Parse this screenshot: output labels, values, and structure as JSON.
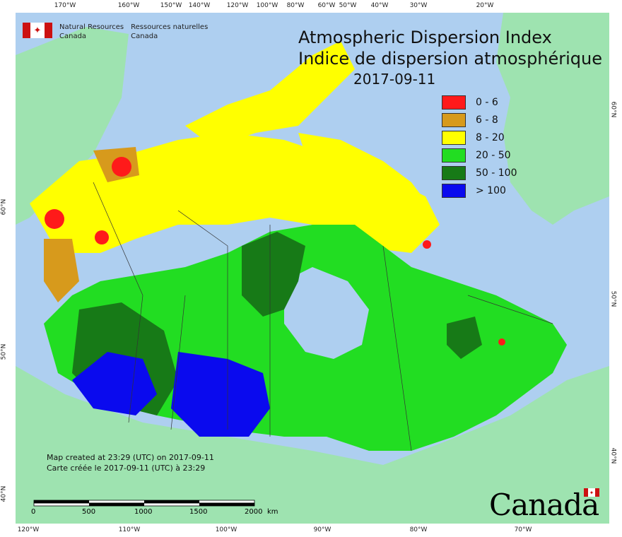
{
  "title_en": "Atmospheric Dispersion Index",
  "title_fr": "Indice de dispersion atmosphérique",
  "date": "2017-09-11",
  "agency": {
    "en_line1": "Natural Resources",
    "en_line2": "Canada",
    "fr_line1": "Ressources naturelles",
    "fr_line2": "Canada"
  },
  "legend": [
    {
      "label": "0 - 6",
      "color": "#ff1a1a"
    },
    {
      "label": "6 - 8",
      "color": "#d79a1c"
    },
    {
      "label": "8 - 20",
      "color": "#ffff00"
    },
    {
      "label": "20 - 50",
      "color": "#22dd22"
    },
    {
      "label": "50 - 100",
      "color": "#177a17"
    },
    {
      "label": "> 100",
      "color": "#0a0aee"
    }
  ],
  "credits": {
    "en": "Map created at 23:29 (UTC) on 2017-09-11",
    "fr": "Carte créée le 2017-09-11 (UTC) à 23:29"
  },
  "scale": {
    "labels": [
      "0",
      "500",
      "1000",
      "1500",
      "2000"
    ],
    "unit": "km"
  },
  "wordmark": "Canada",
  "ticks_top": [
    "170°W",
    "160°W",
    "150°W",
    "140°W",
    "120°W",
    "100°W",
    "80°W",
    "60°W",
    "50°W",
    "40°W",
    "30°W",
    "20°W"
  ],
  "ticks_bottom": [
    "120°W",
    "110°W",
    "100°W",
    "90°W",
    "80°W",
    "70°W"
  ],
  "ticks_left": [
    "60°N",
    "50°N",
    "40°N"
  ],
  "ticks_right": [
    "60°N",
    "50°N",
    "40°N"
  ]
}
